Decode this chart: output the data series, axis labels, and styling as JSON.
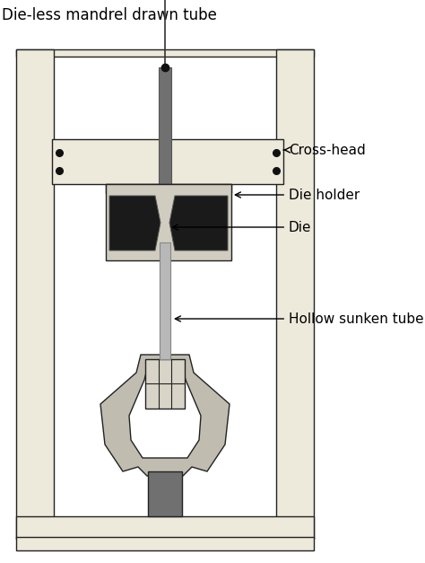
{
  "bg_color": "#ffffff",
  "frame_color": "#ede9db",
  "frame_edge": "#222222",
  "crosshead_color": "#ede9db",
  "die_holder_color": "#d0cdc0",
  "die_color": "#1a1a1a",
  "die_bg_color": "#b8b5a8",
  "tube_upper_color": "#707070",
  "tube_lower_color": "#b8b8b8",
  "clamp_outer_color": "#c0bdb0",
  "clamp_inner_bg": "#ffffff",
  "clamp_block_color": "#d8d5c8",
  "clamp_base_color": "#707070",
  "title": "Die-less mandrel drawn tube",
  "label_crosshead": "Cross-head",
  "label_die_holder": "Die holder",
  "label_die": "Die",
  "label_hollow": "Hollow sunken tube",
  "font_size": 11
}
